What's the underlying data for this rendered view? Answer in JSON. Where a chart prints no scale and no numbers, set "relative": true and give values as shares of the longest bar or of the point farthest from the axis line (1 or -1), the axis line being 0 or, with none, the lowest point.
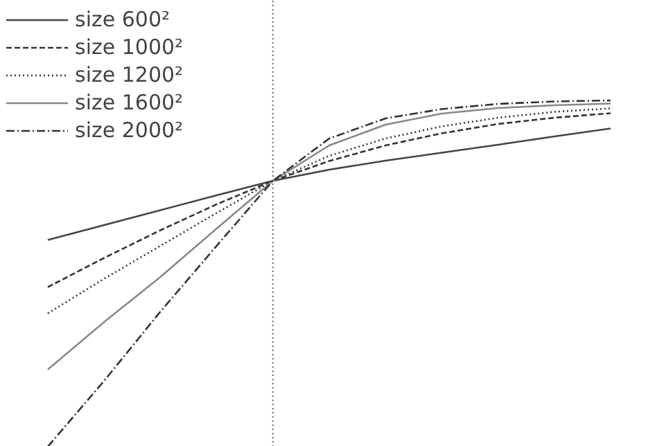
{
  "chart_data": {
    "type": "line",
    "relative": true,
    "categories": [
      null,
      null,
      null,
      null,
      null,
      null,
      null,
      null,
      null,
      null,
      null
    ],
    "series": [
      {
        "name": "size 600²",
        "color": "#444444",
        "line_style": "solid",
        "values": [
          0.597,
          0.64,
          0.683,
          0.726,
          0.768,
          0.8,
          0.826,
          0.849,
          0.872,
          0.896,
          0.919
        ]
      },
      {
        "name": "size 1000²",
        "color": "#333333",
        "line_style": "dashed",
        "values": [
          0.461,
          0.545,
          0.625,
          0.7,
          0.768,
          0.825,
          0.87,
          0.905,
          0.932,
          0.95,
          0.963
        ]
      },
      {
        "name": "size 1200²",
        "color": "#333333",
        "line_style": "dotted",
        "values": [
          0.385,
          0.485,
          0.58,
          0.675,
          0.768,
          0.84,
          0.89,
          0.925,
          0.95,
          0.967,
          0.977
        ]
      },
      {
        "name": "size 1600²",
        "color": "#888888",
        "line_style": "solid",
        "values": [
          0.223,
          0.36,
          0.49,
          0.63,
          0.768,
          0.87,
          0.93,
          0.962,
          0.978,
          0.986,
          0.991
        ]
      },
      {
        "name": "size 2000²",
        "color": "#333333",
        "line_style": "dashdot",
        "values": [
          0,
          0.19,
          0.39,
          0.58,
          0.768,
          0.89,
          0.948,
          0.975,
          0.99,
          0.997,
          1.0
        ]
      }
    ],
    "legend": "top left",
    "grid": false
  }
}
